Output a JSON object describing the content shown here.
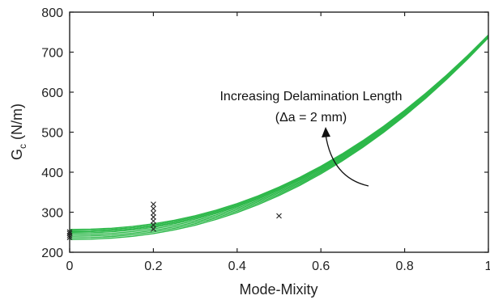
{
  "chart_data": {
    "type": "line",
    "xlabel": "Mode-Mixity",
    "ylabel": {
      "main": "G",
      "sub": "c",
      "unit": " (N/m)"
    },
    "xlim": [
      0,
      1
    ],
    "ylim": [
      200,
      800
    ],
    "xticks": [
      0,
      0.2,
      0.4,
      0.6,
      0.8,
      1
    ],
    "xtick_labels": [
      "0",
      "0.2",
      "0.4",
      "0.6",
      "0.8",
      "1"
    ],
    "yticks": [
      200,
      300,
      400,
      500,
      600,
      700,
      800
    ],
    "ytick_labels": [
      "200",
      "300",
      "400",
      "500",
      "600",
      "700",
      "800"
    ],
    "grid": false,
    "line_color": "#2db84a",
    "marker_color": "#222222",
    "curve_family": {
      "description_note": "",
      "count": 8,
      "G0_values": [
        232,
        236,
        240,
        244,
        248,
        251,
        254,
        257
      ],
      "G1_values": [
        736,
        737,
        738,
        739,
        740,
        741,
        742,
        743
      ],
      "exponent": 2.2,
      "x_samples": [
        0,
        0.05,
        0.1,
        0.15,
        0.2,
        0.25,
        0.3,
        0.35,
        0.4,
        0.45,
        0.5,
        0.55,
        0.6,
        0.65,
        0.7,
        0.75,
        0.8,
        0.85,
        0.9,
        0.95,
        1
      ]
    },
    "scatter_points": [
      {
        "x": 0,
        "y": 237
      },
      {
        "x": 0,
        "y": 242
      },
      {
        "x": 0,
        "y": 247
      },
      {
        "x": 0,
        "y": 251
      },
      {
        "x": 0.2,
        "y": 258
      },
      {
        "x": 0.2,
        "y": 268
      },
      {
        "x": 0.2,
        "y": 278
      },
      {
        "x": 0.2,
        "y": 288
      },
      {
        "x": 0.2,
        "y": 298
      },
      {
        "x": 0.2,
        "y": 309
      },
      {
        "x": 0.2,
        "y": 320
      },
      {
        "x": 0.5,
        "y": 291
      }
    ],
    "annotation": {
      "line1": "Increasing Delamination Length",
      "line2": "(Δa = 2 mm)"
    }
  }
}
